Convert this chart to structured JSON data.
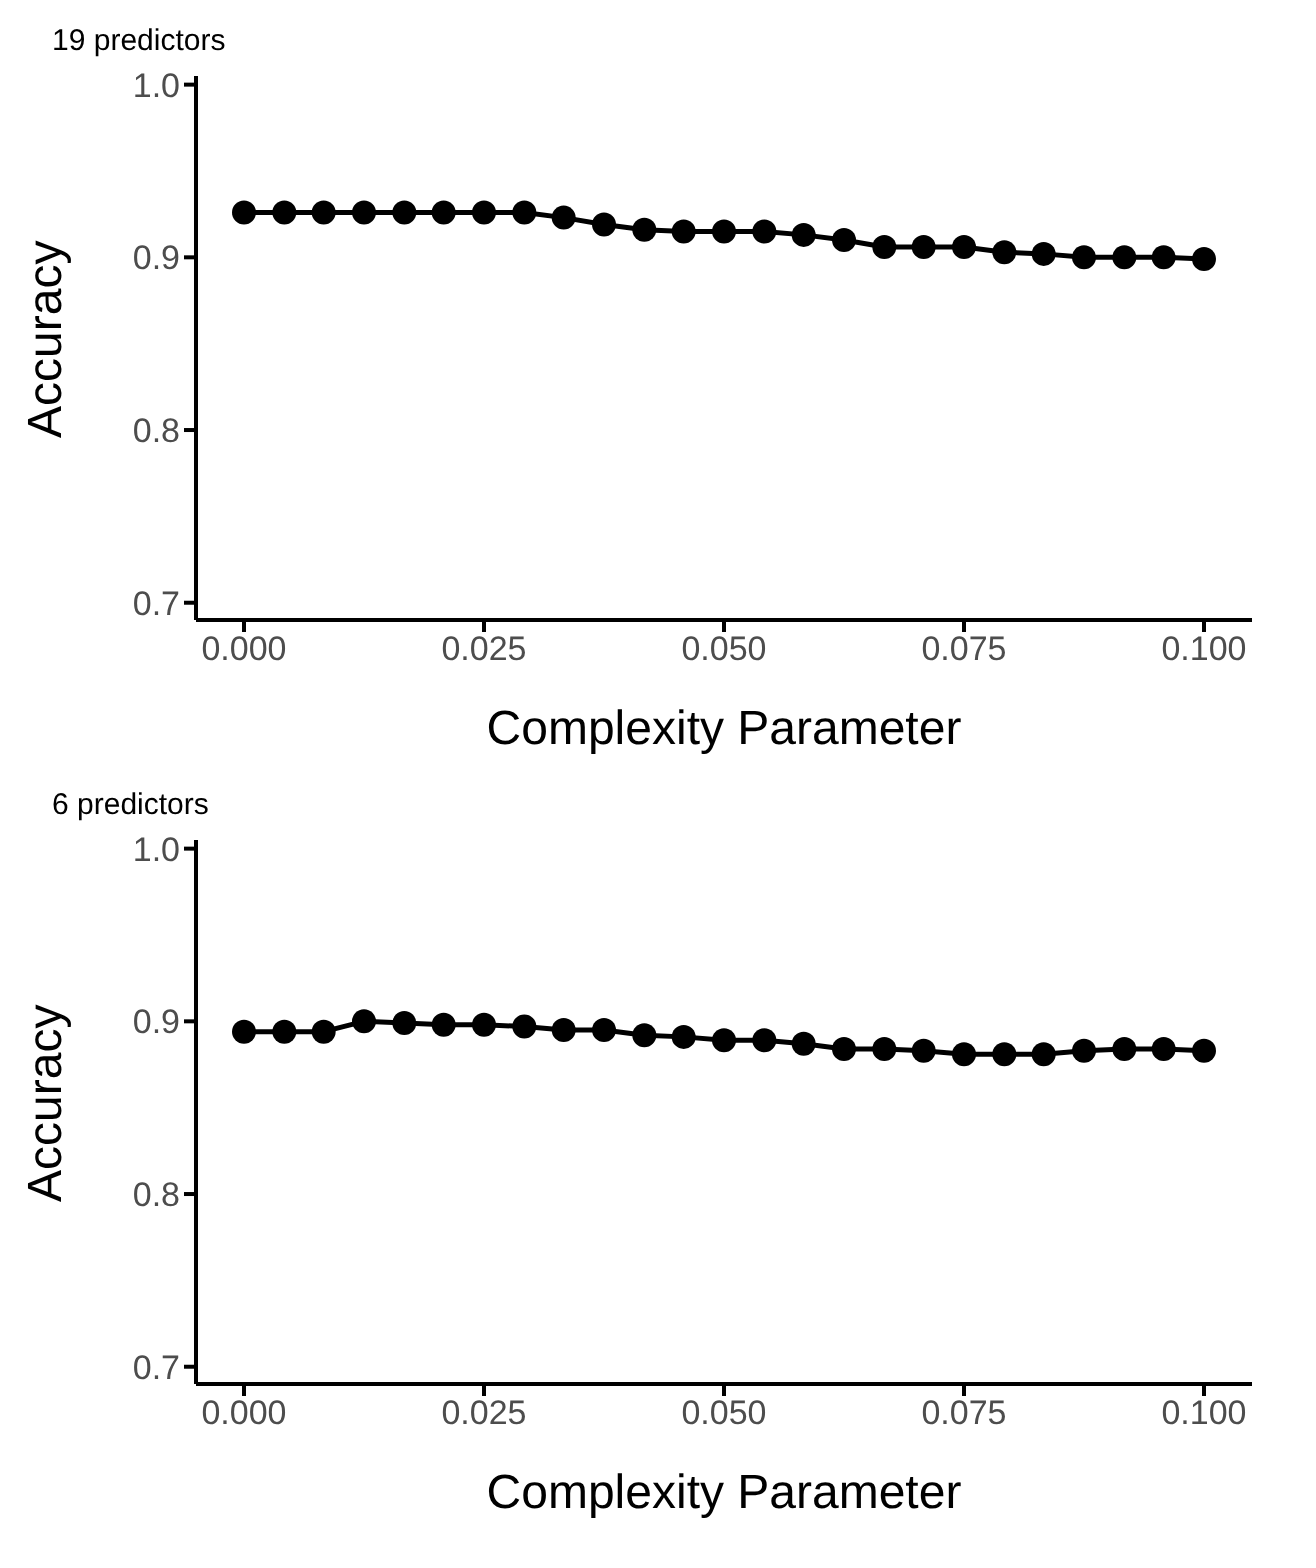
{
  "chart_data": [
    {
      "type": "line",
      "title": "19 predictors",
      "xlabel": "Complexity Parameter",
      "ylabel": "Accuracy",
      "marker": "circle",
      "line_style": "solid",
      "grid": false,
      "legend": false,
      "x": [
        0,
        0.0042,
        0.0083,
        0.0125,
        0.0167,
        0.0208,
        0.025,
        0.0292,
        0.0333,
        0.0375,
        0.0417,
        0.0458,
        0.05,
        0.0542,
        0.0583,
        0.0625,
        0.0667,
        0.0708,
        0.075,
        0.0792,
        0.0833,
        0.0875,
        0.0917,
        0.0958,
        0.1
      ],
      "series": [
        {
          "color": "#000000",
          "values": [
            0.926,
            0.926,
            0.926,
            0.926,
            0.926,
            0.926,
            0.926,
            0.926,
            0.923,
            0.919,
            0.916,
            0.915,
            0.915,
            0.915,
            0.913,
            0.91,
            0.906,
            0.906,
            0.906,
            0.903,
            0.902,
            0.9,
            0.9,
            0.9,
            0.899
          ]
        }
      ],
      "xlim": [
        -0.005,
        0.105
      ],
      "xticks": [
        {
          "value": 0,
          "label": "0.000"
        },
        {
          "value": 0.025,
          "label": "0.025"
        },
        {
          "value": 0.05,
          "label": "0.050"
        },
        {
          "value": 0.075,
          "label": "0.075"
        },
        {
          "value": 0.1,
          "label": "0.100"
        }
      ],
      "ylim": [
        0.69,
        1.005
      ],
      "yticks": [
        {
          "value": 0.7,
          "label": "0.7"
        },
        {
          "value": 0.8,
          "label": "0.8"
        },
        {
          "value": 0.9,
          "label": "0.9"
        },
        {
          "value": 1,
          "label": "1.0"
        }
      ]
    },
    {
      "type": "line",
      "title": "6 predictors",
      "xlabel": "Complexity Parameter",
      "ylabel": "Accuracy",
      "marker": "circle",
      "line_style": "solid",
      "grid": false,
      "legend": false,
      "x": [
        0,
        0.0042,
        0.0083,
        0.0125,
        0.0167,
        0.0208,
        0.025,
        0.0292,
        0.0333,
        0.0375,
        0.0417,
        0.0458,
        0.05,
        0.0542,
        0.0583,
        0.0625,
        0.0667,
        0.0708,
        0.075,
        0.0792,
        0.0833,
        0.0875,
        0.0917,
        0.0958,
        0.1
      ],
      "series": [
        {
          "color": "#000000",
          "values": [
            0.894,
            0.894,
            0.894,
            0.9,
            0.899,
            0.898,
            0.898,
            0.897,
            0.895,
            0.895,
            0.892,
            0.891,
            0.889,
            0.889,
            0.887,
            0.884,
            0.884,
            0.883,
            0.881,
            0.881,
            0.881,
            0.883,
            0.884,
            0.884,
            0.883
          ]
        }
      ],
      "xlim": [
        -0.005,
        0.105
      ],
      "xticks": [
        {
          "value": 0,
          "label": "0.000"
        },
        {
          "value": 0.025,
          "label": "0.025"
        },
        {
          "value": 0.05,
          "label": "0.050"
        },
        {
          "value": 0.075,
          "label": "0.075"
        },
        {
          "value": 0.1,
          "label": "0.100"
        }
      ],
      "ylim": [
        0.69,
        1.005
      ],
      "yticks": [
        {
          "value": 0.7,
          "label": "0.7"
        },
        {
          "value": 0.8,
          "label": "0.8"
        },
        {
          "value": 0.9,
          "label": "0.9"
        },
        {
          "value": 1,
          "label": "1.0"
        }
      ]
    }
  ]
}
